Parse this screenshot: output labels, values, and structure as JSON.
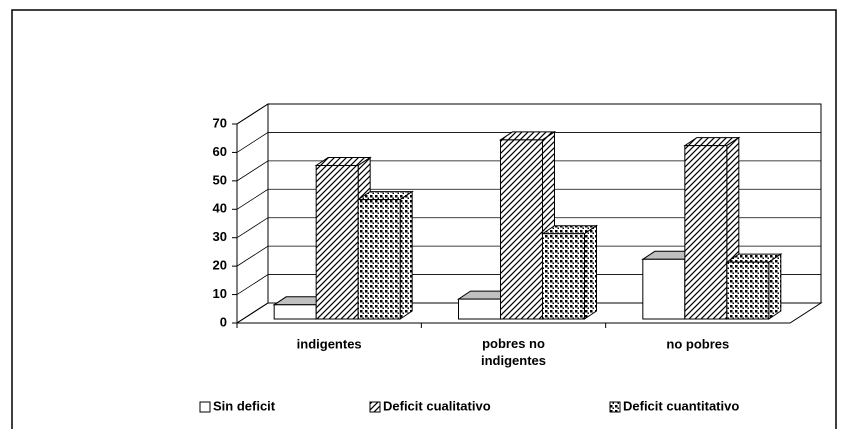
{
  "chart_data": {
    "type": "bar3d",
    "categories": [
      "indigentes",
      [
        "pobres no",
        "indigentes"
      ],
      "no pobres"
    ],
    "series": [
      {
        "name": "Sin deficit",
        "color": "#ffffff",
        "pattern": "none",
        "values": [
          5,
          7,
          21
        ]
      },
      {
        "name": "Deficit cualitativo",
        "color": "#ffffff",
        "pattern": "diagonal",
        "values": [
          54,
          63,
          61
        ]
      },
      {
        "name": "Deficit cuantitativo",
        "color": "#ffffff",
        "pattern": "dots",
        "values": [
          42,
          30,
          20
        ]
      }
    ],
    "ylim": [
      0,
      70
    ],
    "yticks": [
      0,
      10,
      20,
      30,
      40,
      50,
      60,
      70
    ],
    "grid": true,
    "legend": "bottom"
  }
}
